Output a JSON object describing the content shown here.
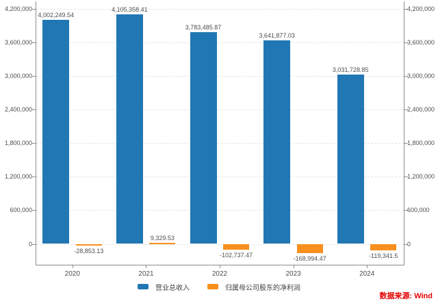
{
  "chart_data": {
    "type": "bar",
    "categories": [
      "2020",
      "2021",
      "2022",
      "2023",
      "2024"
    ],
    "series": [
      {
        "name": "营业总收入",
        "color": "#2077b4",
        "values": [
          4002249.54,
          4105358.41,
          3783485.87,
          3641877.03,
          3031728.85
        ],
        "value_labels": [
          "4,002,249.54",
          "4,105,358.41",
          "3,783,485.87",
          "3,641,877.03",
          "3,031,728.85"
        ]
      },
      {
        "name": "归属母公司股东的净利润",
        "color": "#f98f1e",
        "values": [
          -28853.13,
          9329.53,
          -102737.47,
          -168994.47,
          -119341.5
        ],
        "value_labels": [
          "-28,853.13",
          "9,329.53",
          "-102,737.47",
          "-168,994.47",
          "-119,341.5"
        ]
      }
    ],
    "y_axis": {
      "ticks": [
        0,
        600000,
        1200000,
        1800000,
        2400000,
        3000000,
        3600000,
        4200000
      ],
      "tick_labels": [
        "0",
        "600,000",
        "1,200,000",
        "1,800,000",
        "2,400,000",
        "3,000,000",
        "3,600,000",
        "4,200,000"
      ],
      "max": 4200000,
      "min": -380000,
      "dual_axis": true
    },
    "grid": true,
    "legend_position": "bottom"
  },
  "source_note": {
    "text": "数据来源: Wind"
  }
}
